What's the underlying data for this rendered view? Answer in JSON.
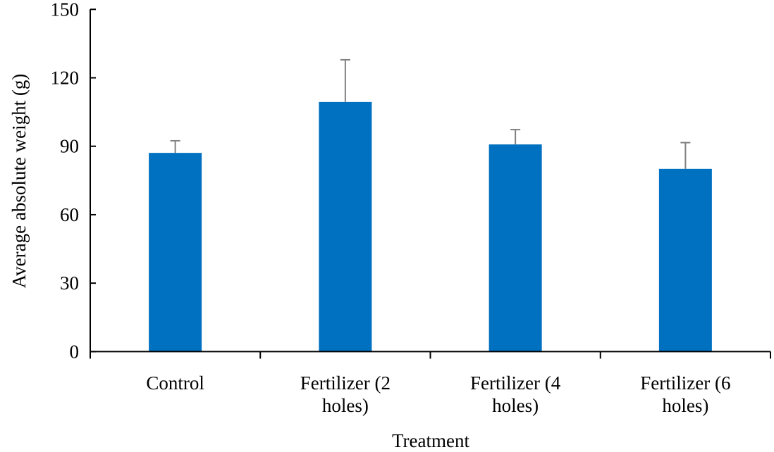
{
  "chart_data": {
    "type": "bar",
    "title": "",
    "xlabel": "Treatment",
    "ylabel": "Average absolute weight (g)",
    "categories": [
      [
        "Control"
      ],
      [
        "Fertilizer (2",
        "holes)"
      ],
      [
        "Fertilizer (4",
        "holes)"
      ],
      [
        "Fertilizer (6",
        "holes)"
      ]
    ],
    "values": [
      87.1,
      109.4,
      90.8,
      80.1
    ],
    "error_plus": [
      5.3,
      18.5,
      6.5,
      11.5
    ],
    "ylim": [
      0,
      150
    ],
    "yticks": [
      "0",
      "30",
      "60",
      "90",
      "120",
      "150"
    ],
    "grid": false,
    "bar_color": "#0070C0",
    "error_color": "#808080"
  }
}
